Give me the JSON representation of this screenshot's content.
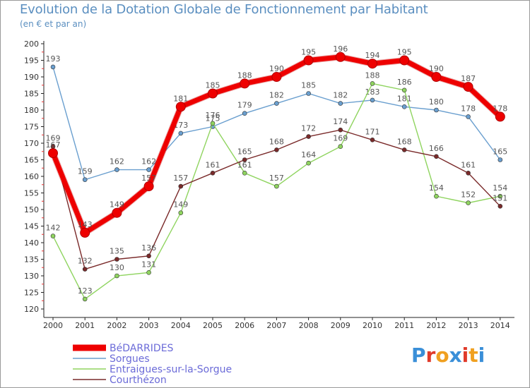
{
  "title": "Evolution de la Dotation Globale de Fonctionnement par Habitant",
  "subtitle": "(en € et par an)",
  "logo": "Proxiti",
  "chart_data": {
    "type": "line",
    "title": "Evolution de la Dotation Globale de Fonctionnement par Habitant",
    "ylabel": "(en € et par an)",
    "ylim": [
      120,
      200
    ],
    "ystep": 5,
    "categories": [
      "2000",
      "2001",
      "2002",
      "2003",
      "2004",
      "2005",
      "2006",
      "2007",
      "2008",
      "2009",
      "2010",
      "2011",
      "2012",
      "2013",
      "2014"
    ],
    "series": [
      {
        "name": "Sorgues",
        "color": "#6a9fcf",
        "values": [
          193,
          159,
          162,
          162,
          173,
          175,
          179,
          182,
          185,
          182,
          183,
          181,
          180,
          178,
          165
        ]
      },
      {
        "name": "Entraigues-sur-la-Sorgue",
        "color": "#8fd45f",
        "values": [
          142,
          123,
          130,
          131,
          149,
          176,
          161,
          157,
          164,
          169,
          188,
          186,
          154,
          152,
          154
        ]
      },
      {
        "name": "Courthézon",
        "color": "#7a2a2a",
        "values": [
          169,
          132,
          135,
          136,
          157,
          161,
          165,
          168,
          172,
          174,
          171,
          168,
          166,
          161,
          151
        ]
      },
      {
        "name": "BéDARRIDES",
        "color": "#ee0000",
        "values": [
          167,
          143,
          149,
          157,
          181,
          185,
          188,
          190,
          195,
          196,
          194,
          195,
          190,
          187,
          178
        ]
      }
    ],
    "legend": [
      "BéDARRIDES",
      "Sorgues",
      "Entraigues-sur-la-Sorgue",
      "Courthézon"
    ],
    "legend_position": "bottom-left",
    "grid": false
  }
}
